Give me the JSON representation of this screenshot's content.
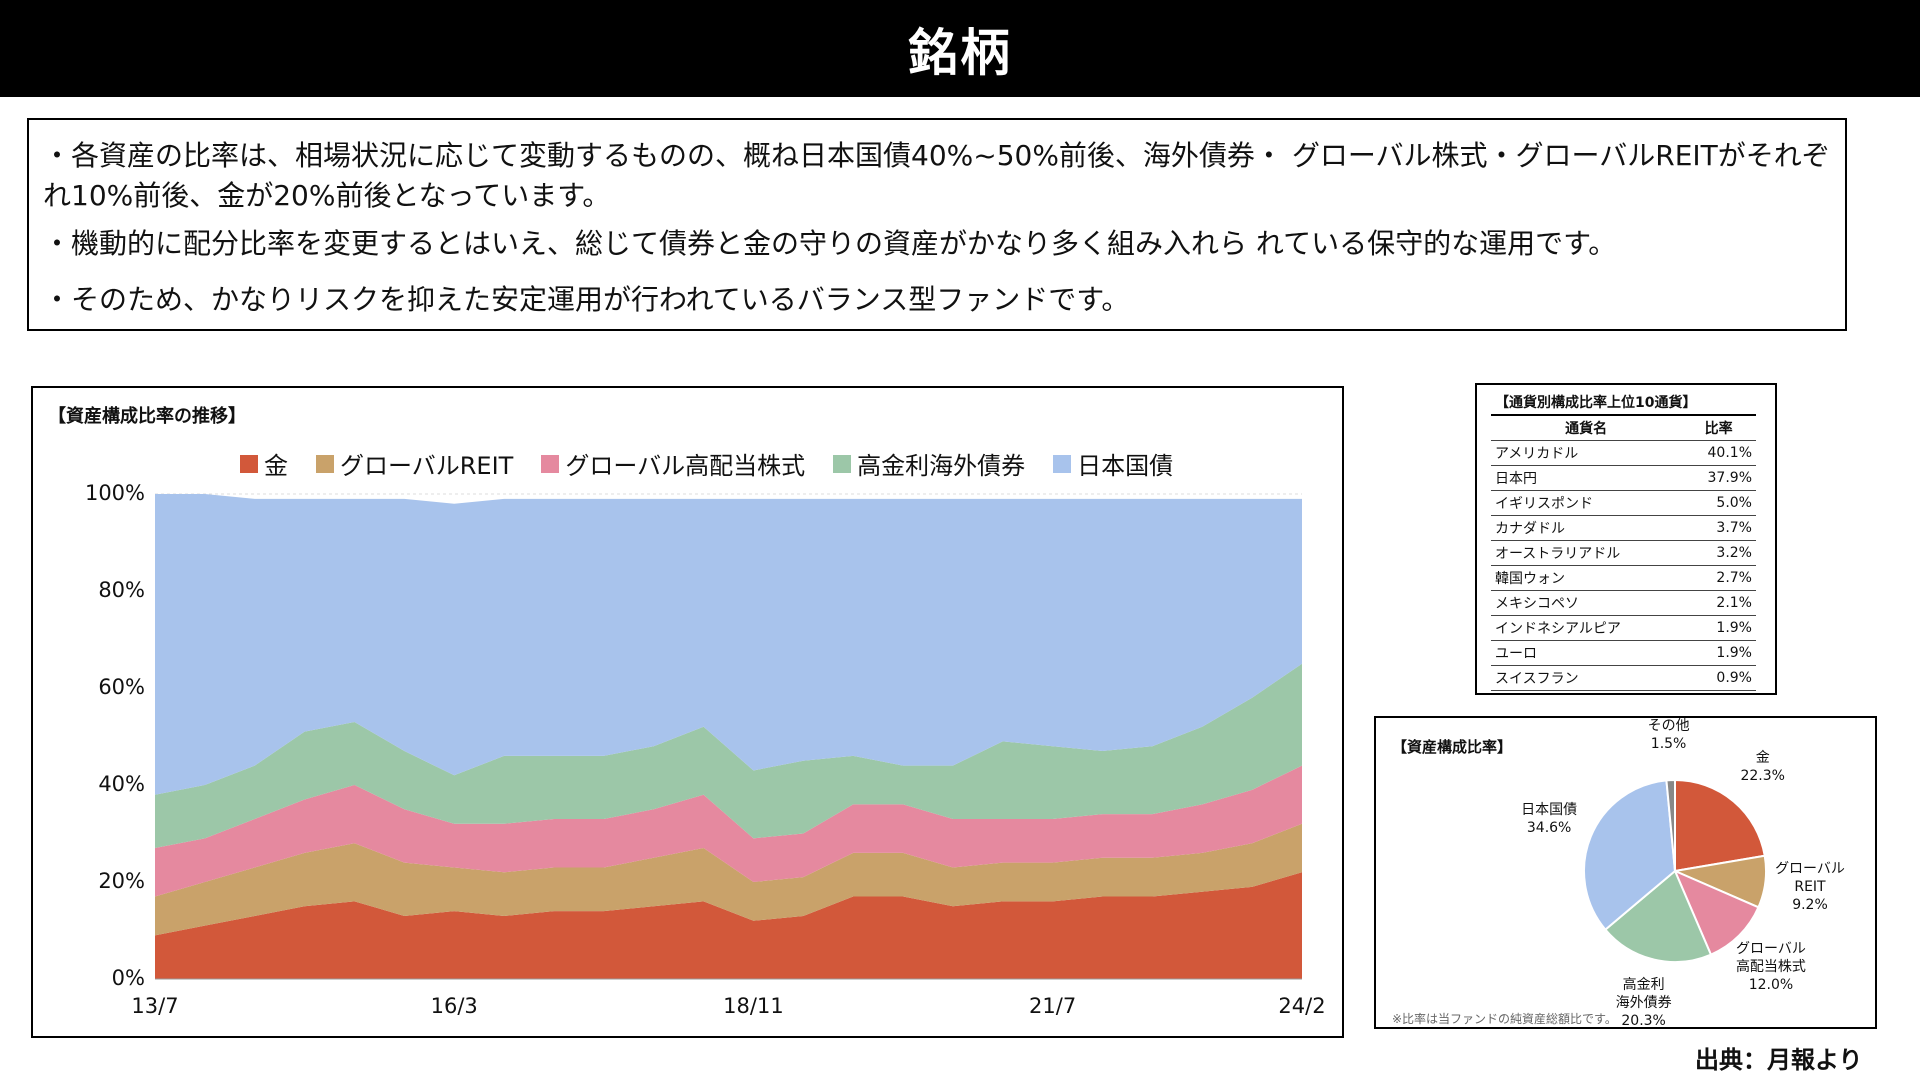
{
  "title": "銘柄",
  "summary": [
    "・各資産の比率は、相場状況に応じて変動するものの、概ね日本国債40%~50%前後、海外債券・ グローバル株式・グローバルREITがそれぞれ10%前後、金が20%前後となっています。",
    "・機動的に配分比率を変更するとはいえ、総じて債券と金の守りの資産がかなり多く組み入れら れている保守的な運用です。",
    "・そのため、かなりリスクを抑えた安定運用が行われているバランス型ファンドです。"
  ],
  "area_panel": {
    "title": "【資産構成比率の推移】"
  },
  "table_panel": {
    "title": "【通貨別構成比率上位10通貨】",
    "headers": [
      "通貨名",
      "比率"
    ],
    "rows": [
      [
        "アメリカドル",
        "40.1%"
      ],
      [
        "日本円",
        "37.9%"
      ],
      [
        "イギリスポンド",
        "5.0%"
      ],
      [
        "カナダドル",
        "3.7%"
      ],
      [
        "オーストラリアドル",
        "3.2%"
      ],
      [
        "韓国ウォン",
        "2.7%"
      ],
      [
        "メキシコペソ",
        "2.1%"
      ],
      [
        "インドネシアルピア",
        "1.9%"
      ],
      [
        "ユーロ",
        "1.9%"
      ],
      [
        "スイスフラン",
        "0.9%"
      ]
    ]
  },
  "pie_panel": {
    "title": "【資産構成比率】",
    "note": "※比率は当ファンドの純資産総額比です。"
  },
  "source": "出典：月報より",
  "colors": {
    "gold": "#d2583a",
    "reit": "#c9a26a",
    "equity": "#e5899f",
    "bond": "#9cc7a8",
    "jgb": "#a8c3ec",
    "other": "#888888"
  },
  "chart_data": [
    {
      "type": "area",
      "stacked": true,
      "legend": [
        "金",
        "グローバルREIT",
        "グローバル高配当株式",
        "高金利海外債券",
        "日本国債"
      ],
      "legend_placement": "top",
      "x_ticks": [
        "13/7",
        "16/3",
        "18/11",
        "21/7",
        "24/2"
      ],
      "y_ticks": [
        "0%",
        "20%",
        "40%",
        "60%",
        "80%",
        "100%"
      ],
      "ylim": [
        0,
        100
      ],
      "x": [
        "13/7",
        "14/1",
        "14/7",
        "15/1",
        "15/7",
        "16/1",
        "16/3",
        "16/7",
        "17/1",
        "17/7",
        "18/1",
        "18/7",
        "18/11",
        "19/1",
        "19/7",
        "20/1",
        "20/7",
        "21/1",
        "21/7",
        "22/1",
        "22/7",
        "23/1",
        "23/7",
        "24/2"
      ],
      "series": [
        {
          "name": "金",
          "values": [
            9,
            11,
            13,
            15,
            16,
            13,
            14,
            13,
            14,
            14,
            15,
            16,
            12,
            13,
            17,
            17,
            15,
            16,
            16,
            17,
            17,
            18,
            19,
            22
          ]
        },
        {
          "name": "グローバルREIT",
          "values": [
            8,
            9,
            10,
            11,
            12,
            11,
            9,
            9,
            9,
            9,
            10,
            11,
            8,
            8,
            9,
            9,
            8,
            8,
            8,
            8,
            8,
            8,
            9,
            10
          ]
        },
        {
          "name": "グローバル高配当株式",
          "values": [
            10,
            9,
            10,
            11,
            12,
            11,
            9,
            10,
            10,
            10,
            10,
            11,
            9,
            9,
            10,
            10,
            10,
            9,
            9,
            9,
            9,
            10,
            11,
            12
          ]
        },
        {
          "name": "高金利海外債券",
          "values": [
            11,
            11,
            11,
            14,
            13,
            12,
            10,
            14,
            13,
            13,
            13,
            14,
            14,
            15,
            10,
            8,
            11,
            16,
            15,
            13,
            14,
            16,
            19,
            21
          ]
        },
        {
          "name": "日本国債",
          "values": [
            62,
            60,
            55,
            48,
            46,
            52,
            56,
            53,
            53,
            53,
            51,
            47,
            56,
            54,
            53,
            55,
            55,
            50,
            51,
            52,
            51,
            47,
            41,
            34
          ]
        }
      ]
    },
    {
      "type": "pie",
      "labels": [
        "金",
        "グローバルREIT",
        "グローバル高配当株式",
        "高金利海外債券",
        "日本国債",
        "その他"
      ],
      "display_labels": [
        [
          "金",
          "22.3%"
        ],
        [
          "グローバル",
          "REIT",
          "9.2%"
        ],
        [
          "グローバル",
          "高配当株式",
          "12.0%"
        ],
        [
          "高金利",
          "海外債券",
          "20.3%"
        ],
        [
          "日本国債",
          "34.6%"
        ],
        [
          "その他",
          "1.5%"
        ]
      ],
      "values": [
        22.3,
        9.2,
        12.0,
        20.3,
        34.6,
        1.5
      ]
    }
  ]
}
